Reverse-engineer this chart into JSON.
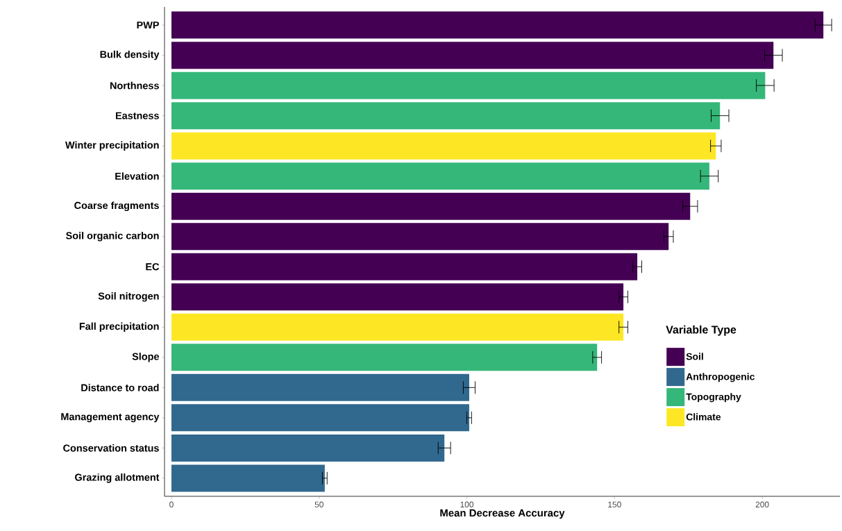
{
  "chart_data": {
    "type": "bar",
    "orientation": "horizontal",
    "xlabel": "Mean Decrease Accuracy",
    "legend_title": "Variable Type",
    "categories": [
      "PWP",
      "Bulk density",
      "Northness",
      "Eastness",
      "Winter precipitation",
      "Elevation",
      "Coarse fragments",
      "Soil organic carbon",
      "EC",
      "Soil nitrogen",
      "Fall precipitation",
      "Slope",
      "Distance to road",
      "Management agency",
      "Conservation status",
      "Grazing allotment"
    ],
    "series": [
      {
        "name": "Soil",
        "color": "#440154",
        "values": [
          220.7,
          203.8,
          null,
          null,
          null,
          null,
          175.6,
          168.3,
          157.7,
          153.0,
          null,
          null,
          null,
          null,
          null,
          null
        ],
        "errors": [
          2.8,
          3.0,
          null,
          null,
          null,
          null,
          2.5,
          1.6,
          1.5,
          1.5,
          null,
          null,
          null,
          null,
          null,
          null
        ]
      },
      {
        "name": "Anthropogenic",
        "color": "#31688e",
        "values": [
          null,
          null,
          null,
          null,
          null,
          null,
          null,
          null,
          null,
          null,
          null,
          null,
          100.8,
          100.8,
          92.4,
          51.9
        ],
        "errors": [
          null,
          null,
          null,
          null,
          null,
          null,
          null,
          null,
          null,
          null,
          null,
          null,
          2.0,
          0.8,
          2.1,
          0.8
        ]
      },
      {
        "name": "Topography",
        "color": "#35b779",
        "values": [
          null,
          null,
          201.0,
          185.7,
          null,
          182.1,
          null,
          null,
          null,
          null,
          null,
          144.1,
          null,
          null,
          null,
          null
        ],
        "errors": [
          null,
          null,
          3.0,
          3.0,
          null,
          3.0,
          null,
          null,
          null,
          null,
          null,
          1.5,
          null,
          null,
          null,
          null
        ]
      },
      {
        "name": "Climate",
        "color": "#fde725",
        "values": [
          null,
          null,
          null,
          null,
          184.3,
          null,
          null,
          null,
          null,
          null,
          153.0,
          null,
          null,
          null,
          null,
          null
        ],
        "errors": [
          null,
          null,
          null,
          null,
          1.8,
          null,
          null,
          null,
          null,
          null,
          1.5,
          null,
          null,
          null,
          null,
          null
        ]
      }
    ],
    "xlim": [
      -2.35,
      226.3
    ],
    "xticks": [
      0,
      50,
      100,
      150,
      200
    ],
    "grid": false,
    "legend": "right"
  }
}
